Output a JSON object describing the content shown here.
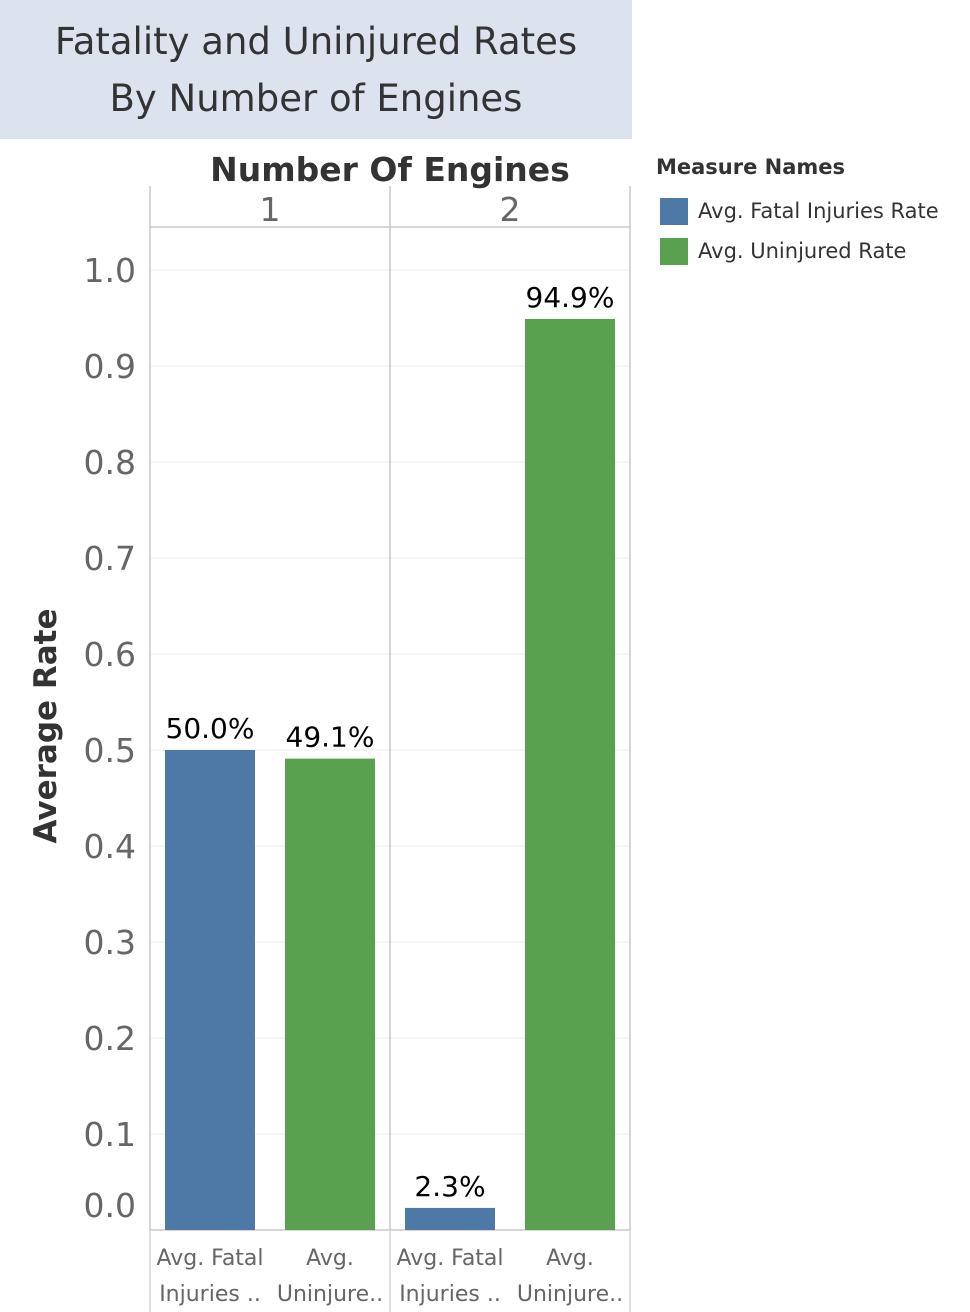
{
  "title_lines": [
    "Fatality and Uninjured Rates",
    "By Number of Engines"
  ],
  "chart_data": {
    "type": "bar",
    "column_header": "Number Of Engines",
    "panes": [
      {
        "label": "1",
        "bars": [
          {
            "measure": "Avg. Fatal Injuries Rate",
            "value": 0.5,
            "label": "50.0%",
            "cat_lines": [
              "Avg. Fatal",
              "Injuries .."
            ]
          },
          {
            "measure": "Avg. Uninjured Rate",
            "value": 0.491,
            "label": "49.1%",
            "cat_lines": [
              "Avg.",
              "Uninjure.."
            ]
          }
        ]
      },
      {
        "label": "2",
        "bars": [
          {
            "measure": "Avg. Fatal Injuries Rate",
            "value": 0.023,
            "label": "2.3%",
            "cat_lines": [
              "Avg. Fatal",
              "Injuries .."
            ]
          },
          {
            "measure": "Avg. Uninjured Rate",
            "value": 0.949,
            "label": "94.9%",
            "cat_lines": [
              "Avg.",
              "Uninjure.."
            ]
          }
        ]
      }
    ],
    "ylabel": "Average Rate",
    "ylim": [
      0,
      1.05
    ],
    "yticks": [
      "0.0",
      "0.1",
      "0.2",
      "0.3",
      "0.4",
      "0.5",
      "0.6",
      "0.7",
      "0.8",
      "0.9",
      "1.0"
    ],
    "grid": true,
    "legend": {
      "title": "Measure Names",
      "placement": "right",
      "items": [
        {
          "name": "Avg. Fatal Injuries Rate",
          "color": "#4e79a7"
        },
        {
          "name": "Avg. Uninjured Rate",
          "color": "#59a14f"
        }
      ]
    }
  }
}
